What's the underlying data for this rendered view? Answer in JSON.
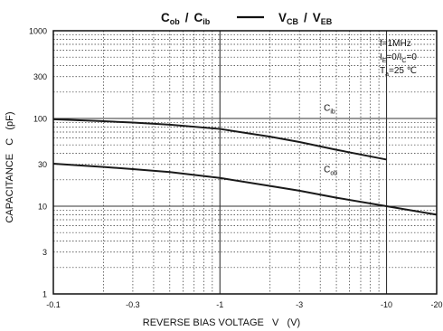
{
  "chart_data": {
    "type": "line",
    "title": {
      "left_a": "C",
      "left_a_sub": "ob",
      "sep1": "/",
      "left_b": "C",
      "left_b_sub": "ib",
      "right_a": "V",
      "right_a_sub": "CB",
      "sep2": "/",
      "right_b": "V",
      "right_b_sub": "EB"
    },
    "xlabel": "REVERSE BIAS VOLTAGE   V   (V)",
    "ylabel": "CAPACITANCE   C   (pF)",
    "x_scale": "log",
    "y_scale": "log",
    "xlim": [
      -0.1,
      -20
    ],
    "ylim": [
      1,
      1000
    ],
    "x_ticks": [
      {
        "value": -0.1,
        "label": "-0.1"
      },
      {
        "value": -0.3,
        "label": "-0.3"
      },
      {
        "value": -1,
        "label": "-1"
      },
      {
        "value": -3,
        "label": "-3"
      },
      {
        "value": -10,
        "label": "-10"
      },
      {
        "value": -20,
        "label": "-20"
      }
    ],
    "y_ticks": [
      {
        "value": 1,
        "label": "1"
      },
      {
        "value": 3,
        "label": "3"
      },
      {
        "value": 10,
        "label": "10"
      },
      {
        "value": 30,
        "label": "30"
      },
      {
        "value": 100,
        "label": "100"
      },
      {
        "value": 300,
        "label": "300"
      },
      {
        "value": 1000,
        "label": "1000"
      }
    ],
    "grid": true,
    "conditions": [
      {
        "main": "f=1MHz"
      },
      {
        "parts": [
          [
            "I",
            ""
          ],
          [
            "E",
            "sub"
          ],
          [
            "=0/I",
            ""
          ],
          [
            "C",
            "sub"
          ],
          [
            "=0",
            ""
          ]
        ]
      },
      {
        "parts": [
          [
            "T",
            ""
          ],
          [
            "a",
            "sub"
          ],
          [
            "=25 ℃",
            ""
          ]
        ]
      }
    ],
    "series": [
      {
        "name": "C",
        "name_sub": "ib",
        "x": [
          -0.1,
          -0.2,
          -0.3,
          -0.5,
          -1,
          -2,
          -3,
          -5,
          -10
        ],
        "y": [
          98,
          93,
          90,
          85,
          76,
          62,
          54,
          44,
          34
        ]
      },
      {
        "name": "C",
        "name_sub": "ob",
        "x": [
          -0.1,
          -0.2,
          -0.3,
          -0.5,
          -1,
          -2,
          -3,
          -5,
          -10,
          -20
        ],
        "y": [
          30.5,
          28,
          26.5,
          24.5,
          21,
          17,
          15,
          12.5,
          10,
          8
        ]
      }
    ],
    "colors": {
      "line": "#1a1a1a",
      "grid": "#333333",
      "axis": "#111111"
    }
  }
}
